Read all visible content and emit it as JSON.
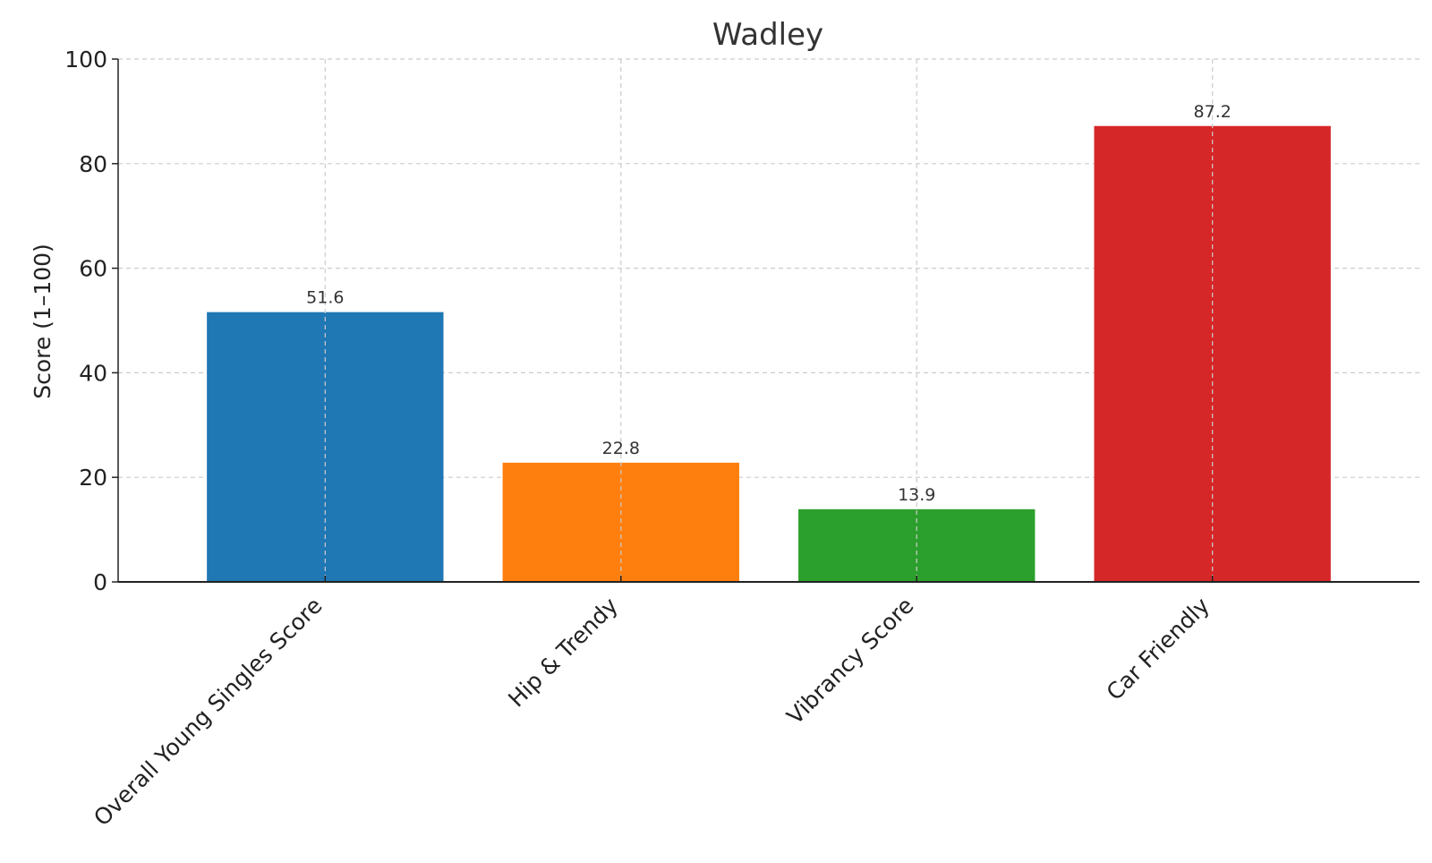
{
  "chart_data": {
    "type": "bar",
    "title": "Wadley",
    "xlabel": "",
    "ylabel": "Score (1–100)",
    "categories": [
      "Overall Young Singles Score",
      "Hip & Trendy",
      "Vibrancy Score",
      "Car Friendly"
    ],
    "values": [
      51.6,
      22.8,
      13.9,
      87.2
    ],
    "data_labels": [
      "51.6",
      "22.8",
      "13.9",
      "87.2"
    ],
    "colors": [
      "#1f77b4",
      "#ff7f0e",
      "#2ca02c",
      "#d62728"
    ],
    "ylim": [
      0,
      100
    ],
    "yticks": [
      0,
      20,
      40,
      60,
      80,
      100
    ],
    "ytick_labels": [
      "0",
      "20",
      "40",
      "60",
      "80",
      "100"
    ],
    "grid": true,
    "legend": "none"
  }
}
